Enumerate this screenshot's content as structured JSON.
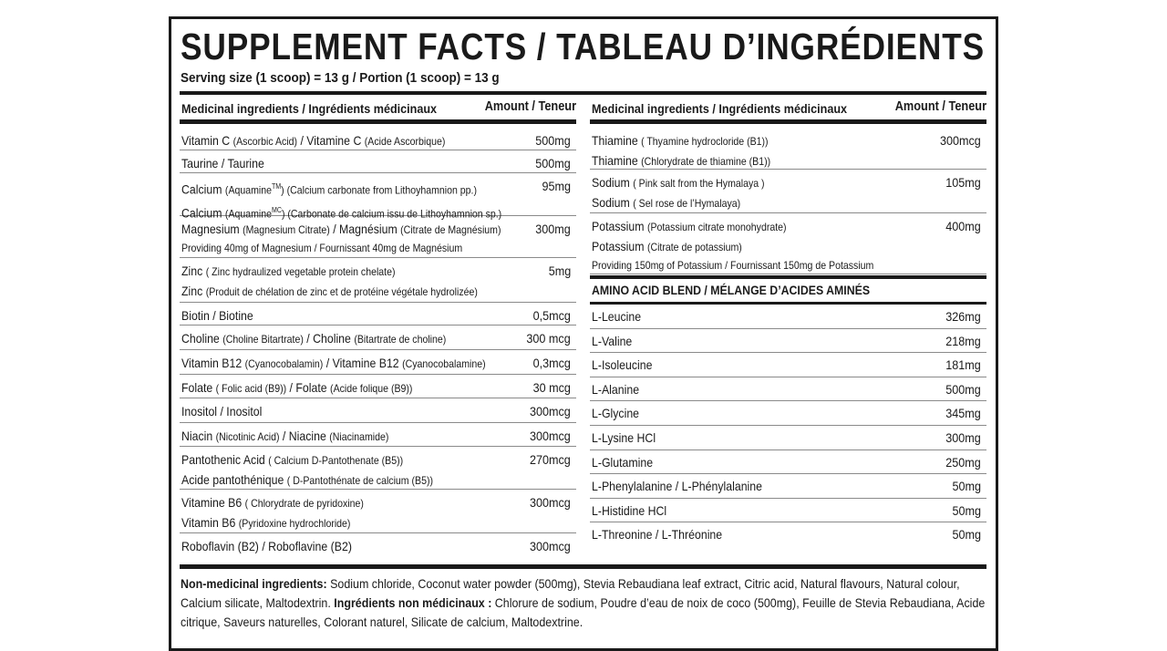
{
  "title": "SUPPLEMENT FACTS / TABLEAU D’INGRÉDIENTS",
  "serving": "Serving size (1 scoop) = 13 g  / Portion (1 scoop) = 13 g",
  "header": {
    "ingredients": "Medicinal ingredients / Ingrédients médicinaux",
    "amount": "Amount / Teneur"
  },
  "left_rows": [
    {
      "amount": "500mg",
      "lines": [
        [
          {
            "t": "Vitamin C "
          },
          {
            "t": "(Ascorbic Acid)",
            "s": 1
          },
          {
            "t": " / Vitamine C "
          },
          {
            "t": "(Acide Ascorbique)",
            "s": 1
          }
        ]
      ]
    },
    {
      "amount": "500mg",
      "lines": [
        [
          {
            "t": "Taurine / Taurine"
          }
        ]
      ]
    },
    {
      "amount": "95mg",
      "lines": [
        [
          {
            "t": "Calcium "
          },
          {
            "t": "(Aquamine",
            "s": 1
          },
          {
            "t": "TM",
            "sup": 1
          },
          {
            "t": ")  (Calcium carbonate from Lithoyhamnion pp.)",
            "s": 1
          }
        ],
        [
          {
            "t": "Calcium "
          },
          {
            "t": "(Aquamine",
            "s": 1
          },
          {
            "t": "MC",
            "sup": 1
          },
          {
            "t": ") (Carbonate de calcium issu de Lithoyhamnion sp.)",
            "s": 1
          }
        ]
      ]
    },
    {
      "amount": "300mg",
      "lines": [
        [
          {
            "t": "Magnesium "
          },
          {
            "t": "(Magnesium Citrate)",
            "s": 1
          },
          {
            "t": " / Magnésium "
          },
          {
            "t": "(Citrate de Magnésium)",
            "s": 1
          }
        ],
        {
          "small": "Providing 40mg of Magnesium / Fournissant 40mg de Magnésium"
        }
      ]
    },
    {
      "amount": "5mg",
      "lines": [
        [
          {
            "t": "Zinc "
          },
          {
            "t": "( Zinc hydraulized vegetable protein chelate)",
            "s": 1
          }
        ],
        [
          {
            "t": "Zinc "
          },
          {
            "t": "(Produit de chélation de zinc et de protéine végétale hydrolizée)",
            "s": 1
          }
        ]
      ]
    },
    {
      "amount": "0,5mcg",
      "lines": [
        [
          {
            "t": "Biotin / Biotine"
          }
        ]
      ]
    },
    {
      "amount": "300 mcg",
      "lines": [
        [
          {
            "t": "Choline "
          },
          {
            "t": "(Choline Bitartrate)",
            "s": 1
          },
          {
            "t": " / Choline "
          },
          {
            "t": "(Bitartrate de choline)",
            "s": 1
          }
        ]
      ]
    },
    {
      "amount": "0,3mcg",
      "lines": [
        [
          {
            "t": "Vitamin B12 "
          },
          {
            "t": "(Cyanocobalamin)",
            "s": 1
          },
          {
            "t": " / Vitamine B12 "
          },
          {
            "t": "(Cyanocobalamine)",
            "s": 1
          }
        ]
      ]
    },
    {
      "amount": "30 mcg",
      "lines": [
        [
          {
            "t": "Folate "
          },
          {
            "t": "( Folic acid (B9))",
            "s": 1
          },
          {
            "t": " / Folate "
          },
          {
            "t": "(Acide folique (B9))",
            "s": 1
          }
        ]
      ]
    },
    {
      "amount": "300mcg",
      "lines": [
        [
          {
            "t": "Inositol / Inositol"
          }
        ]
      ]
    },
    {
      "amount": "300mcg",
      "lines": [
        [
          {
            "t": "Niacin "
          },
          {
            "t": "(Nicotinic Acid)",
            "s": 1
          },
          {
            "t": " / Niacine "
          },
          {
            "t": "(Niacinamide)",
            "s": 1
          }
        ]
      ]
    },
    {
      "amount": "270mcg",
      "lines": [
        [
          {
            "t": "Pantothenic Acid "
          },
          {
            "t": "( Calcium D-Pantothenate (B5))",
            "s": 1
          }
        ],
        [
          {
            "t": "Acide pantothénique "
          },
          {
            "t": "( D-Pantothénate de calcium (B5))",
            "s": 1
          }
        ]
      ]
    },
    {
      "amount": "300mcg",
      "lines": [
        [
          {
            "t": "Vitamine B6 "
          },
          {
            "t": "( Chlorydrate de pyridoxine)",
            "s": 1
          }
        ],
        [
          {
            "t": "Vitamin B6 "
          },
          {
            "t": "(Pyridoxine hydrochloride)",
            "s": 1
          }
        ]
      ]
    },
    {
      "amount": "300mcg",
      "lines": [
        [
          {
            "t": "Roboflavin (B2) / Roboflavine (B2)"
          }
        ]
      ]
    }
  ],
  "right_rows": [
    {
      "amount": "300mcg",
      "lines": [
        [
          {
            "t": "Thiamine "
          },
          {
            "t": "( Thyamine hydrocloride (B1))",
            "s": 1
          }
        ],
        [
          {
            "t": "Thiamine "
          },
          {
            "t": "(Chlorydrate de thiamine (B1))",
            "s": 1
          }
        ]
      ]
    },
    {
      "amount": "105mg",
      "lines": [
        [
          {
            "t": "Sodium "
          },
          {
            "t": "( Pink salt from the Hymalaya )",
            "s": 1
          }
        ],
        [
          {
            "t": "Sodium "
          },
          {
            "t": "( Sel rose de l’Hymalaya)",
            "s": 1
          }
        ]
      ]
    },
    {
      "amount": "400mg",
      "lines": [
        [
          {
            "t": "Potassium "
          },
          {
            "t": "(Potassium citrate monohydrate)",
            "s": 1
          }
        ],
        [
          {
            "t": "Potassium "
          },
          {
            "t": "(Citrate de potassium)",
            "s": 1
          }
        ],
        {
          "small": "Providing 150mg of Potassium / Fournissant 150mg de Potassium"
        }
      ]
    }
  ],
  "amino_blend": {
    "title": "AMINO ACID BLEND / MÉLANGE D’ACIDES AMINÉS",
    "rows": [
      {
        "name": "L-Leucine",
        "amount": "326mg"
      },
      {
        "name": "L-Valine",
        "amount": "218mg"
      },
      {
        "name": "L-Isoleucine",
        "amount": "181mg"
      },
      {
        "name": "L-Alanine",
        "amount": "500mg"
      },
      {
        "name": "L-Glycine",
        "amount": "345mg"
      },
      {
        "name": "L-Lysine HCl",
        "amount": "300mg"
      },
      {
        "name": "L-Glutamine",
        "amount": "250mg"
      },
      {
        "name": "L-Phenylalanine / L-Phénylalanine",
        "amount": "50mg"
      },
      {
        "name": "L-Histidine HCl",
        "amount": "50mg"
      },
      {
        "name": "L-Threonine / L-Thréonine",
        "amount": "50mg"
      }
    ]
  },
  "non_medicinal": {
    "en_label": "Non-medicinal ingredients:",
    "en_text": " Sodium chloride, Coconut water powder (500mg), Stevia Rebaudiana leaf extract, Citric acid, Natural flavours, Natural colour, Calcium silicate, Maltodextrin. ",
    "fr_label": "Ingrédients non médicinaux :",
    "fr_text": " Chlorure de sodium, Poudre d’eau de noix de coco (500mg), Feuille de Stevia Rebaudiana, Acide citrique, Saveurs naturelles, Colorant naturel, Silicate de calcium, Maltodextrine."
  }
}
